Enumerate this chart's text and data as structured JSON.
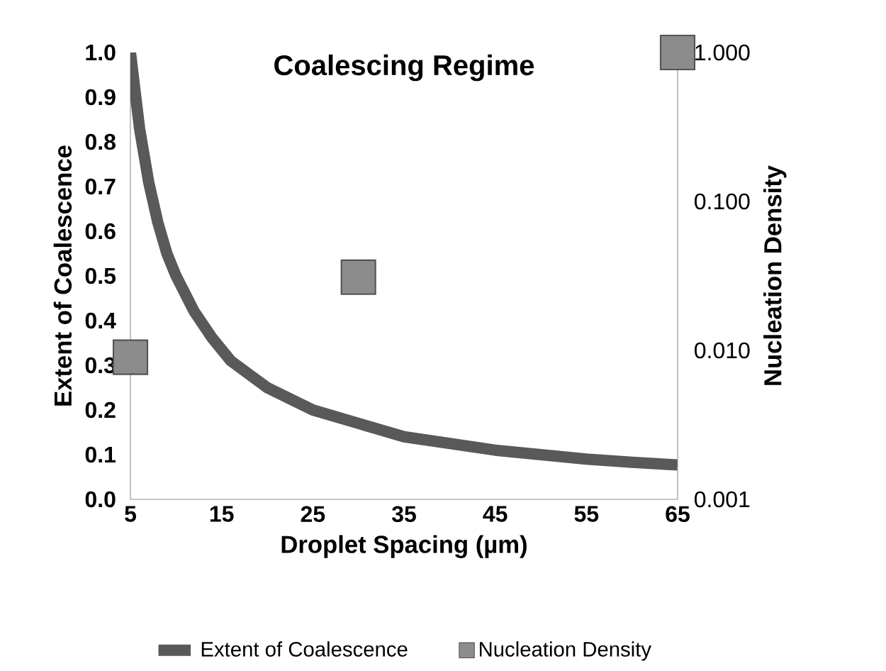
{
  "chart_data": {
    "type": "line",
    "title": "Coalescing Regime",
    "xlabel": "Droplet Spacing (µm)",
    "ylabel": "Extent of Coalescence",
    "y2label": "Nucleation Density",
    "xlim": [
      5,
      65
    ],
    "xticks": [
      5,
      15,
      25,
      35,
      45,
      55,
      65
    ],
    "ylim": [
      0,
      1
    ],
    "yticks": [
      {
        "value": 0,
        "label": "0.0"
      },
      {
        "value": 0.1,
        "label": "0.1"
      },
      {
        "value": 0.2,
        "label": "0.2"
      },
      {
        "value": 0.3,
        "label": "0.3"
      },
      {
        "value": 0.4,
        "label": "0.4"
      },
      {
        "value": 0.5,
        "label": "0.5"
      },
      {
        "value": 0.6,
        "label": "0.6"
      },
      {
        "value": 0.7,
        "label": "0.7"
      },
      {
        "value": 0.8,
        "label": "0.8"
      },
      {
        "value": 0.9,
        "label": "0.9"
      },
      {
        "value": 1,
        "label": "1.0"
      }
    ],
    "y2lim": [
      0.001,
      1
    ],
    "y2ticks": [
      {
        "value": 0.001,
        "label": "0.001"
      },
      {
        "value": 0.01,
        "label": "0.010"
      },
      {
        "value": 0.1,
        "label": "0.100"
      },
      {
        "value": 1,
        "label": "1.000"
      }
    ],
    "log": "y2",
    "grid": false,
    "legend": "bottom",
    "series": [
      {
        "name": "Extent of Coalescence",
        "color": "#595959",
        "marker": "none",
        "x": [
          5,
          6,
          7,
          8,
          9,
          10,
          12,
          14,
          16,
          18,
          20,
          25,
          30,
          35,
          40,
          45,
          50,
          55,
          60,
          65
        ],
        "values": [
          1.0,
          0.83,
          0.71,
          0.62,
          0.55,
          0.5,
          0.42,
          0.36,
          0.31,
          0.28,
          0.25,
          0.2,
          0.17,
          0.14,
          0.125,
          0.11,
          0.1,
          0.09,
          0.083,
          0.077
        ]
      },
      {
        "name": "Nucleation Density",
        "type": "scatter",
        "axis": "y2",
        "color": "#8c8c8c",
        "marker": "square",
        "x": [
          5,
          30,
          65
        ],
        "values": [
          0.009,
          0.031,
          1.0
        ]
      }
    ]
  }
}
